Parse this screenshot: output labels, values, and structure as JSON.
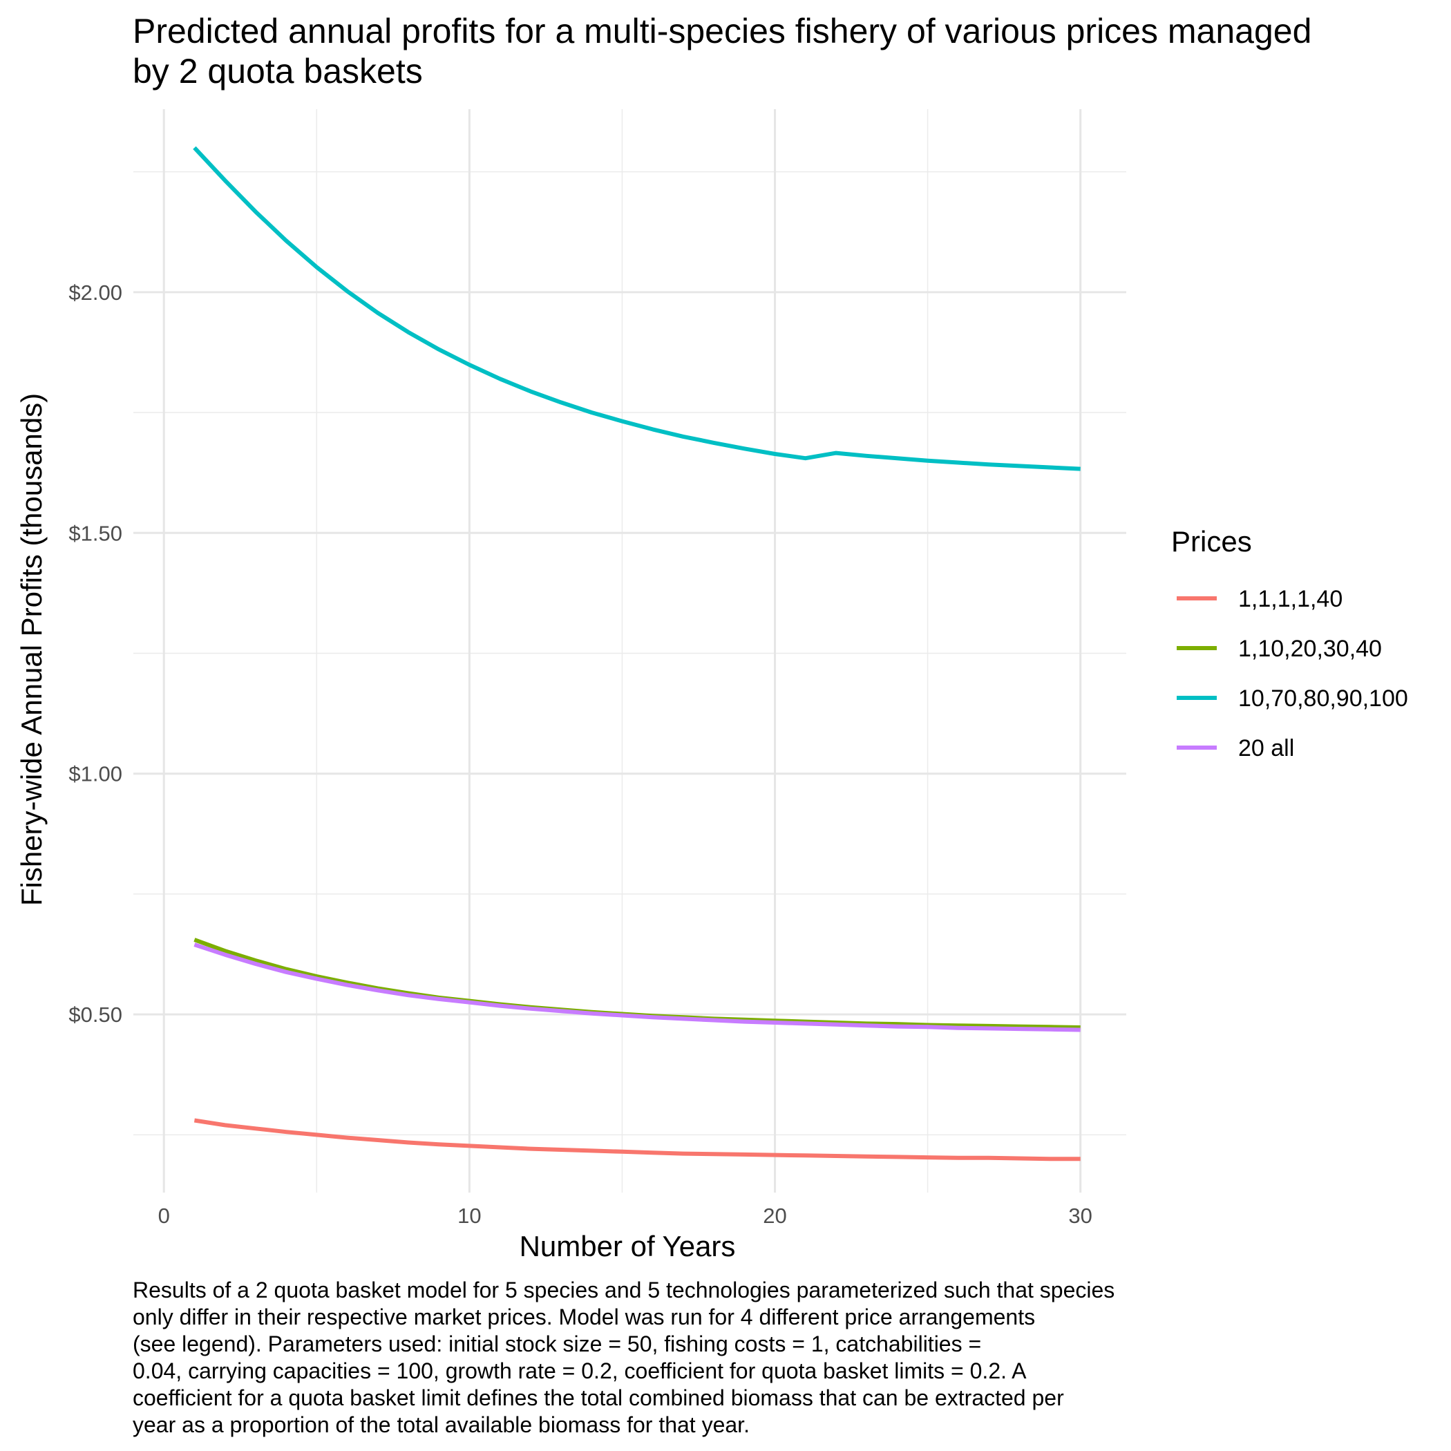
{
  "chart_data": {
    "type": "line",
    "title_lines": [
      "Predicted annual profits for a multi-species fishery of various prices managed",
      "by 2 quota baskets"
    ],
    "xlabel": "Number of Years",
    "ylabel": "Fishery-wide Annual Profits (thousands)",
    "xlim": [
      -1,
      31.5
    ],
    "ylim": [
      0.13,
      2.38
    ],
    "x_ticks": [
      0,
      10,
      20,
      30
    ],
    "x_tick_labels": [
      "0",
      "10",
      "20",
      "30"
    ],
    "y_ticks": [
      0.5,
      1.0,
      1.5,
      2.0
    ],
    "y_tick_labels": [
      "$0.50",
      "$1.00",
      "$1.50",
      "$2.00"
    ],
    "y_minor_ticks": [
      0.25,
      0.75,
      1.25,
      1.75,
      2.25
    ],
    "x_minor_ticks": [
      5,
      15,
      25
    ],
    "grid": true,
    "legend": {
      "title": "Prices",
      "position": "right"
    },
    "x": [
      1,
      2,
      3,
      4,
      5,
      6,
      7,
      8,
      9,
      10,
      11,
      12,
      13,
      14,
      15,
      16,
      17,
      18,
      19,
      20,
      21,
      22,
      23,
      24,
      25,
      26,
      27,
      28,
      29,
      30
    ],
    "series": [
      {
        "name": "1,1,1,1,40",
        "color": "#F8766D",
        "values": [
          0.28,
          0.27,
          0.263,
          0.256,
          0.25,
          0.244,
          0.239,
          0.234,
          0.23,
          0.227,
          0.224,
          0.221,
          0.219,
          0.217,
          0.215,
          0.213,
          0.211,
          0.21,
          0.209,
          0.208,
          0.207,
          0.206,
          0.205,
          0.204,
          0.203,
          0.202,
          0.202,
          0.201,
          0.2,
          0.2
        ]
      },
      {
        "name": "1,10,20,30,40",
        "color": "#7CAE00",
        "values": [
          0.655,
          0.632,
          0.612,
          0.594,
          0.579,
          0.566,
          0.554,
          0.544,
          0.535,
          0.528,
          0.521,
          0.515,
          0.51,
          0.505,
          0.501,
          0.497,
          0.494,
          0.491,
          0.489,
          0.487,
          0.485,
          0.483,
          0.481,
          0.48,
          0.478,
          0.477,
          0.476,
          0.475,
          0.474,
          0.473
        ]
      },
      {
        "name": "10,70,80,90,100",
        "color": "#00BFC4",
        "values": [
          2.3,
          2.232,
          2.167,
          2.107,
          2.052,
          2.002,
          1.957,
          1.917,
          1.881,
          1.849,
          1.82,
          1.794,
          1.771,
          1.75,
          1.732,
          1.715,
          1.7,
          1.687,
          1.675,
          1.664,
          1.655,
          1.666,
          1.66,
          1.655,
          1.65,
          1.646,
          1.642,
          1.639,
          1.636,
          1.633
        ]
      },
      {
        "name": "20 all",
        "color": "#C77CFF",
        "values": [
          0.645,
          0.624,
          0.605,
          0.588,
          0.574,
          0.561,
          0.55,
          0.54,
          0.532,
          0.525,
          0.518,
          0.512,
          0.507,
          0.502,
          0.498,
          0.494,
          0.491,
          0.488,
          0.485,
          0.483,
          0.481,
          0.479,
          0.477,
          0.475,
          0.474,
          0.472,
          0.471,
          0.47,
          0.469,
          0.468
        ]
      }
    ]
  },
  "caption_lines": [
    "Results of a 2 quota basket model for 5 species and 5 technologies parameterized such that species",
    "only differ in their respective market prices. Model was run for 4 different price arrangements",
    "(see legend). Parameters used: initial stock size = 50, fishing costs = 1, catchabilities =",
    "0.04, carrying capacities = 100, growth rate = 0.2, coefficient for quota basket limits = 0.2. A",
    "coefficient for a quota basket limit defines the total combined biomass that can be extracted per",
    "year as a proportion of the total available biomass for that year."
  ]
}
